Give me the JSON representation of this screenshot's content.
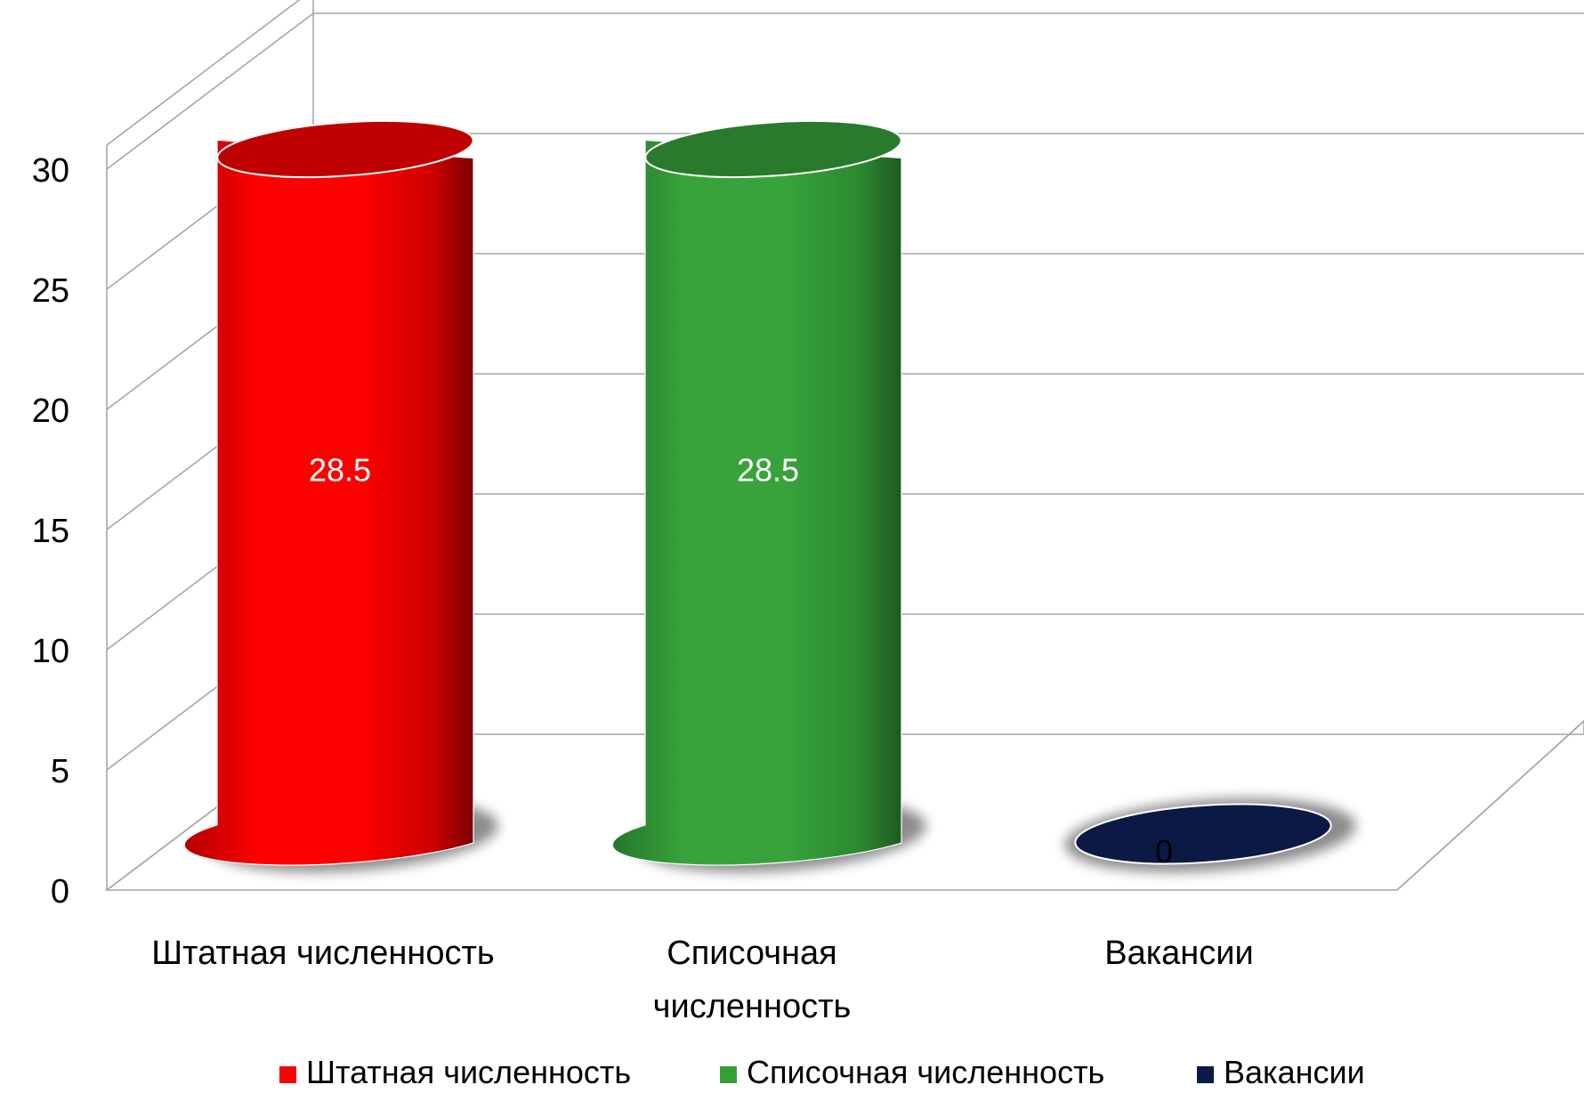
{
  "chart_data": {
    "type": "bar",
    "style": "3d-cylinder",
    "categories": [
      "Штатная численность",
      "Списочная численность",
      "Вакансии"
    ],
    "values": [
      28.5,
      28.5,
      0
    ],
    "data_labels": [
      "28.5",
      "28.5",
      "0"
    ],
    "series": [
      {
        "name": "Штатная численность",
        "color": "#ff0000",
        "value": 28.5
      },
      {
        "name": "Списочная численность",
        "color": "#36a037",
        "value": 28.5
      },
      {
        "name": "Вакансии",
        "color": "#0b1a44",
        "value": 0
      }
    ],
    "y_ticks": [
      "0",
      "5",
      "10",
      "15",
      "20",
      "25",
      "30"
    ],
    "ylim": [
      0,
      30
    ],
    "grid": true,
    "legend_position": "bottom",
    "title": "",
    "xlabel": "",
    "ylabel": ""
  }
}
